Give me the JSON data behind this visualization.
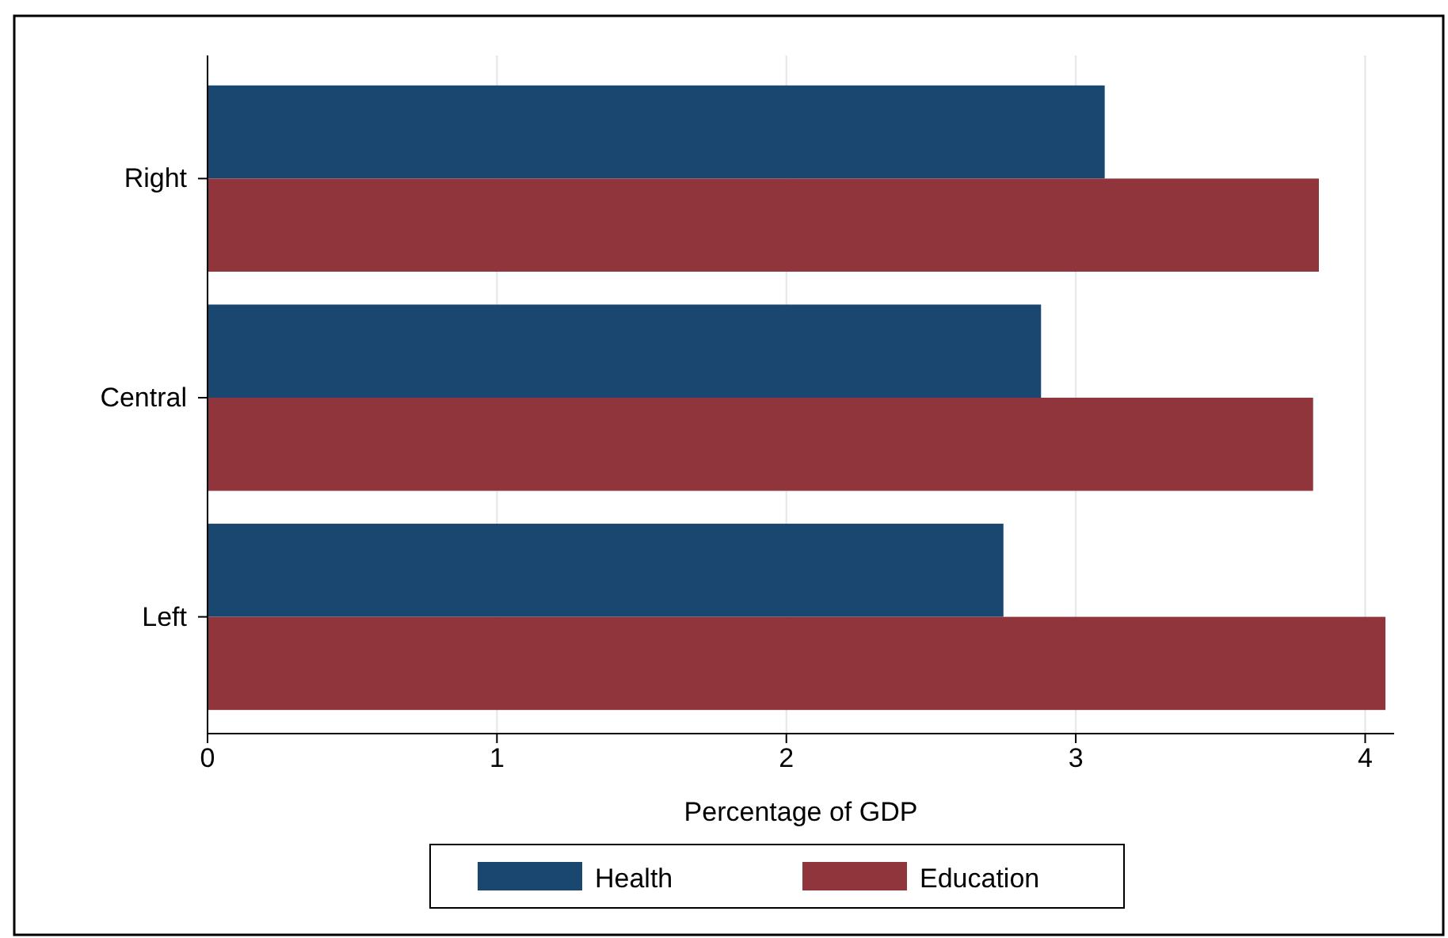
{
  "chart_data": {
    "type": "bar",
    "orientation": "horizontal",
    "xlabel": "Percentage of GDP",
    "categories": [
      "Right",
      "Central",
      "Left"
    ],
    "series": [
      {
        "name": "Health",
        "color": "#1a476f",
        "values": [
          3.1,
          2.88,
          2.75
        ]
      },
      {
        "name": "Education",
        "color": "#90353b",
        "values": [
          3.84,
          3.82,
          4.07
        ]
      }
    ],
    "xlim": [
      0,
      4.1
    ],
    "xticks": [
      0,
      1,
      2,
      3,
      4
    ],
    "grid": "x",
    "legend": "bottom"
  }
}
